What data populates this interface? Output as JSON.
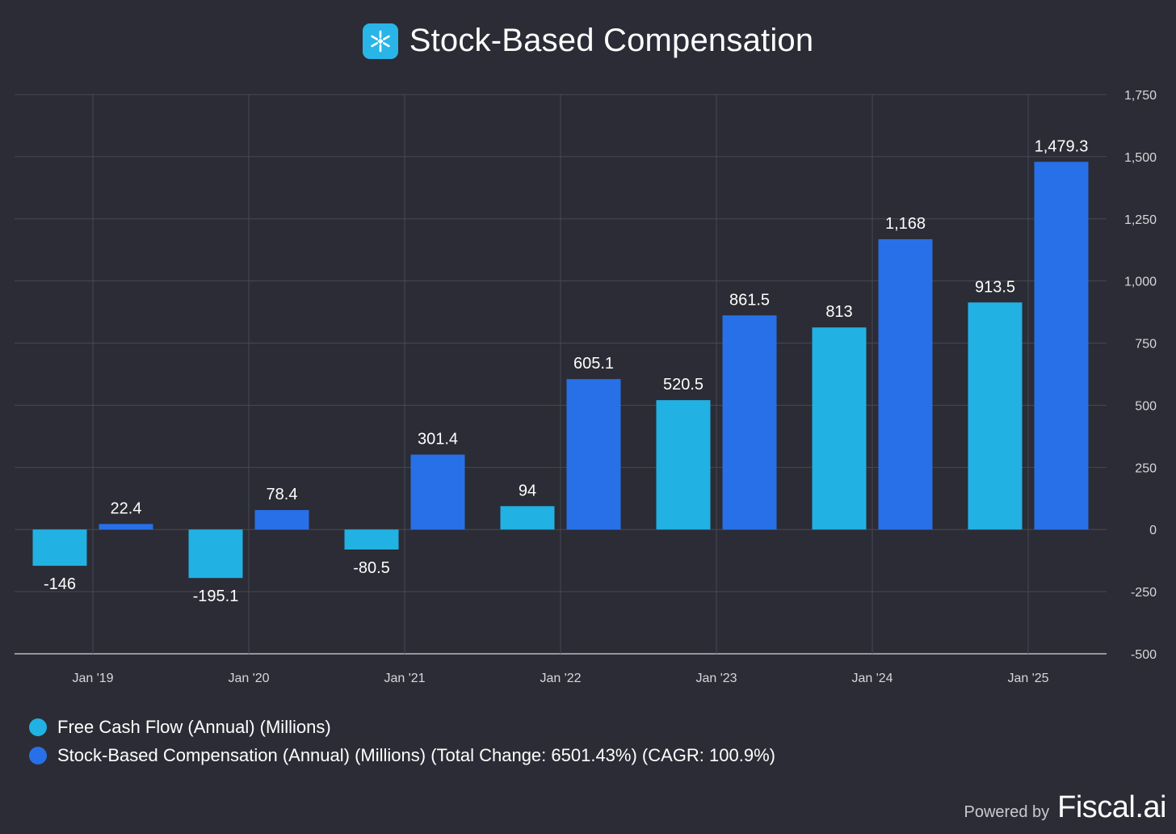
{
  "header": {
    "title": "Stock-Based Compensation",
    "logo_icon": "snowflake-icon",
    "logo_color": "#29b5e8"
  },
  "chart_data": {
    "type": "bar",
    "title": "Stock-Based Compensation",
    "categories": [
      "Jan '19",
      "Jan '20",
      "Jan '21",
      "Jan '22",
      "Jan '23",
      "Jan '24",
      "Jan '25"
    ],
    "series": [
      {
        "name": "Free Cash Flow (Annual) (Millions)",
        "color": "#22b1e3",
        "values": [
          -146,
          -195.1,
          -80.5,
          94,
          520.5,
          813,
          913.5
        ],
        "labels": [
          "-146",
          "-195.1",
          "-80.5",
          "94",
          "520.5",
          "813",
          "913.5"
        ]
      },
      {
        "name": "Stock-Based Compensation (Annual) (Millions) (Total Change: 6501.43%) (CAGR: 100.9%)",
        "color": "#2770e8",
        "values": [
          22.4,
          78.4,
          301.4,
          605.1,
          861.5,
          1168,
          1479.3
        ],
        "labels": [
          "22.4",
          "78.4",
          "301.4",
          "605.1",
          "861.5",
          "1,168",
          "1,479.3"
        ]
      }
    ],
    "ylim": [
      -500,
      1750
    ],
    "yticks": [
      1750,
      1500,
      1250,
      1000,
      750,
      500,
      250,
      0,
      -250,
      -500
    ],
    "ytick_labels": [
      "1,750",
      "1,500",
      "1,250",
      "1,000",
      "750",
      "500",
      "250",
      "0",
      "-250",
      "-500"
    ],
    "axis_position": "right",
    "grid": true,
    "legend_position": "bottom-left"
  },
  "footer": {
    "powered_by": "Powered by",
    "brand": "Fiscal.ai"
  }
}
